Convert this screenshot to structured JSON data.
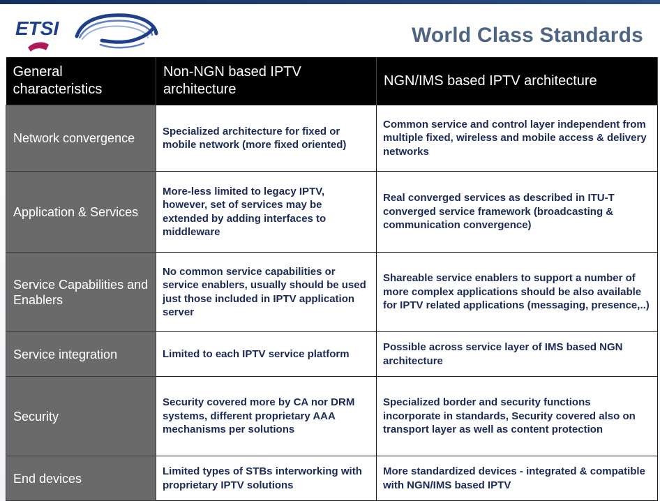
{
  "header": {
    "logo_text": "ETSI",
    "title": "World Class Standards"
  },
  "table": {
    "columns": [
      "General characteristics",
      "Non-NGN based IPTV architecture",
      "NGN/IMS based IPTV architecture"
    ],
    "rows": [
      {
        "characteristic": "Network convergence",
        "non_ngn": "Specialized architecture for fixed or mobile network (more fixed oriented)",
        "ngn_ims": "Common service and control layer independent from multiple fixed, wireless and mobile access & delivery networks"
      },
      {
        "characteristic": "Application & Services",
        "non_ngn": "More-less limited to legacy IPTV, however, set of services may be extended by adding interfaces to middleware",
        "ngn_ims": "Real converged services as described in ITU-T converged service framework (broadcasting & communication convergence)"
      },
      {
        "characteristic": "Service Capabilities and Enablers",
        "non_ngn": "No common service capabilities or service enablers, usually should be used just those included in IPTV application server",
        "ngn_ims": "Shareable service enablers to support a number of more complex applications should be also available for IPTV related applications (messaging, presence,..)"
      },
      {
        "characteristic": "Service integration",
        "non_ngn": "Limited to each IPTV service platform",
        "ngn_ims": "Possible across service layer of IMS based NGN architecture"
      },
      {
        "characteristic": "Security",
        "non_ngn": "Security covered more by CA nor DRM systems, different proprietary AAA mechanisms per solutions",
        "ngn_ims": "Specialized border and security functions incorporate in standards, Security covered also on transport layer as well as content protection"
      },
      {
        "characteristic": "End devices",
        "non_ngn": "Limited types of STBs interworking with proprietary IPTV solutions",
        "ngn_ims": "More standardized devices - integrated & compatible with NGN/IMS based IPTV"
      }
    ]
  },
  "colors": {
    "title": "#4d6482",
    "header_bg": "#000000",
    "rowhead_bg": "#6a6a6a",
    "cell_text": "#1b2a57",
    "logo_blue": "#1e3f8a",
    "logo_accent": "#b0185a"
  }
}
